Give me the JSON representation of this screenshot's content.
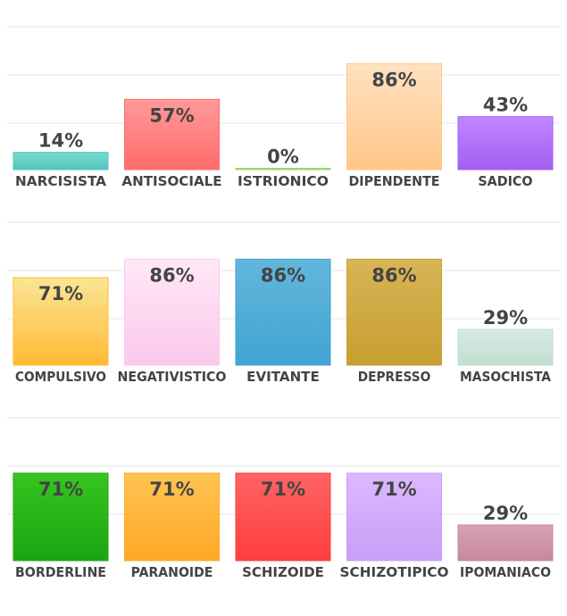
{
  "chart_data": [
    {
      "type": "bar",
      "categories": [
        "NARCISISTA",
        "ANTISOCIALE",
        "ISTRIONICO",
        "DIPENDENTE",
        "SADICO"
      ],
      "values": [
        14,
        57,
        0,
        86,
        43
      ],
      "value_labels": [
        "14%",
        "57%",
        "0%",
        "86%",
        "43%"
      ],
      "ylim": [
        0,
        100
      ],
      "grid": true,
      "colors": [
        [
          "#78ddd0",
          "#50c4bb"
        ],
        [
          "#ff9999",
          "#ff6b6b"
        ],
        [
          "#c9f0a6",
          "#8fd86a"
        ],
        [
          "#ffe1c2",
          "#ffc788"
        ],
        [
          "#c286ff",
          "#a45ef2"
        ]
      ]
    },
    {
      "type": "bar",
      "categories": [
        "COMPULSIVO",
        "NEGATIVISTICO",
        "EVITANTE",
        "DEPRESSO",
        "MASOCHISTA"
      ],
      "values": [
        71,
        86,
        86,
        86,
        29
      ],
      "value_labels": [
        "71%",
        "86%",
        "86%",
        "86%",
        "29%"
      ],
      "ylim": [
        0,
        100
      ],
      "grid": true,
      "colors": [
        [
          "#fbe596",
          "#ffbb33"
        ],
        [
          "#ffe8f7",
          "#fcc8ec"
        ],
        [
          "#62b6dc",
          "#42a4d2"
        ],
        [
          "#d8b454",
          "#c79f32"
        ],
        [
          "#d9ebe3",
          "#c2ddd0"
        ]
      ]
    },
    {
      "type": "bar",
      "categories": [
        "BORDERLINE",
        "PARANOIDE",
        "SCHIZOIDE",
        "SCHIZOTIPICO",
        "IPOMANIACO"
      ],
      "values": [
        71,
        71,
        71,
        71,
        29
      ],
      "value_labels": [
        "71%",
        "71%",
        "71%",
        "71%",
        "29%"
      ],
      "ylim": [
        0,
        100
      ],
      "grid": true,
      "colors": [
        [
          "#35c61e",
          "#1aa512"
        ],
        [
          "#ffc452",
          "#ffa925"
        ],
        [
          "#ff6464",
          "#ff3e3e"
        ],
        [
          "#dbb9ff",
          "#c99ef6"
        ],
        [
          "#d8a2b6",
          "#c7889f"
        ]
      ]
    }
  ]
}
